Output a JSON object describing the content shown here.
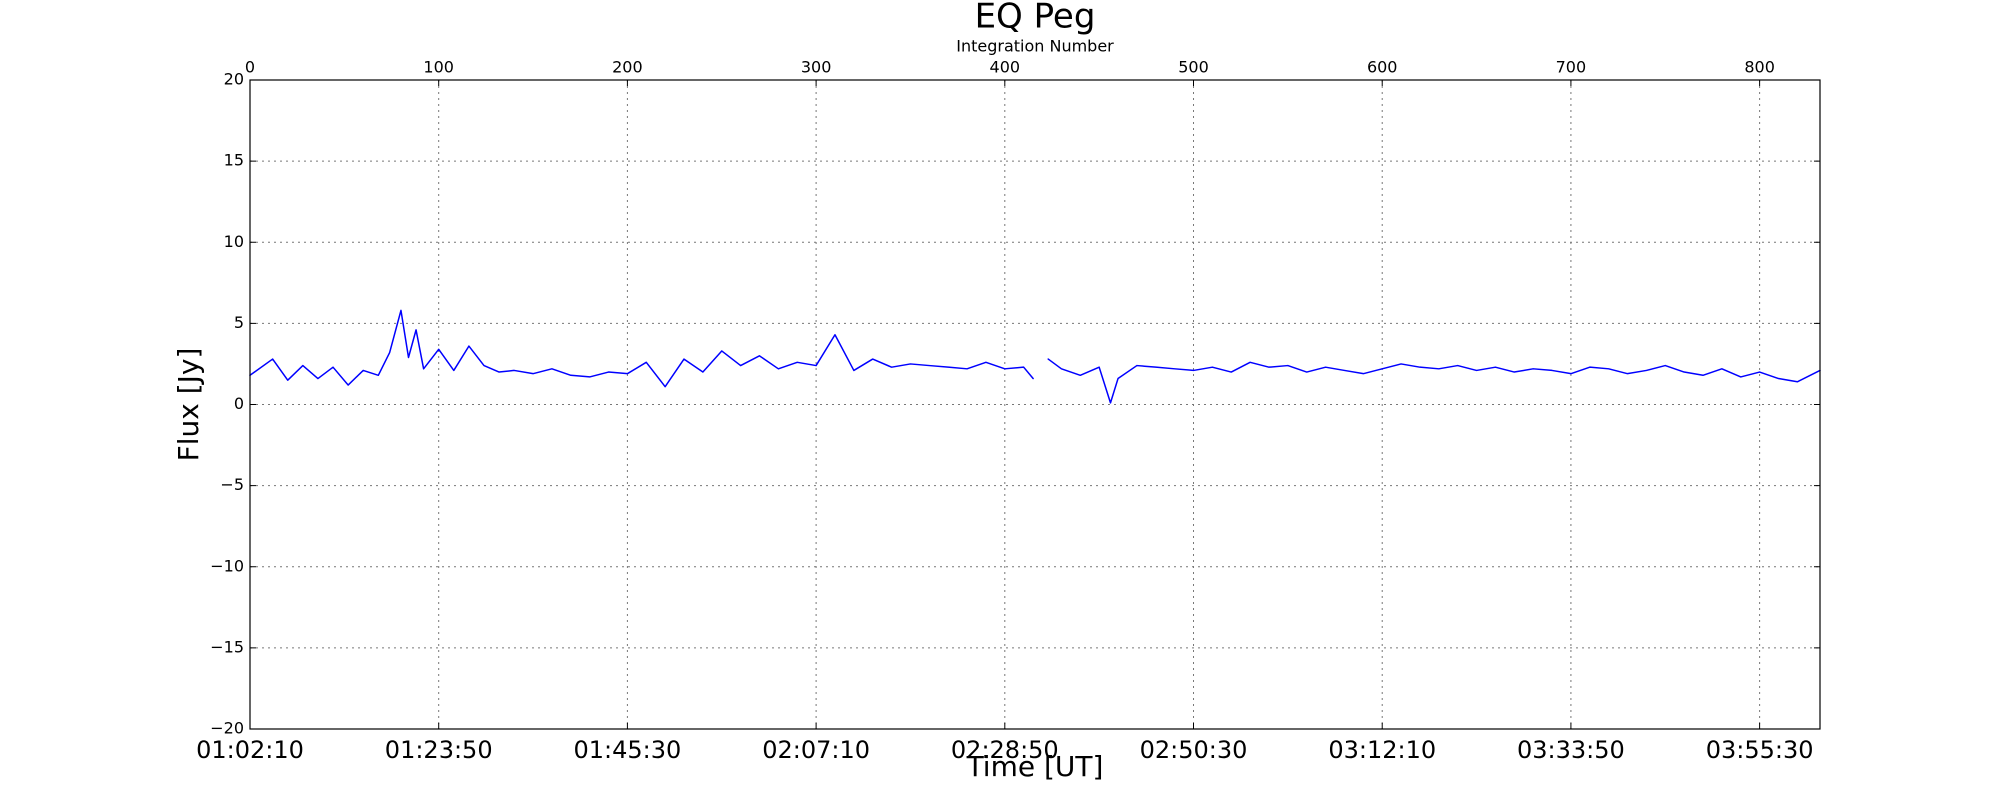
{
  "chart_data": {
    "type": "line",
    "title": "EQ Peg",
    "xlabel": "Time [UT]",
    "ylabel": "Flux [Jy]",
    "x2label": "Integration Number",
    "xlim": [
      0,
      832
    ],
    "ylim": [
      -20,
      20
    ],
    "grid": true,
    "x_ticks": [
      {
        "value": 0,
        "label": "01:02:10"
      },
      {
        "value": 100,
        "label": "01:23:50"
      },
      {
        "value": 200,
        "label": "01:45:30"
      },
      {
        "value": 300,
        "label": "02:07:10"
      },
      {
        "value": 400,
        "label": "02:28:50"
      },
      {
        "value": 500,
        "label": "02:50:30"
      },
      {
        "value": 600,
        "label": "03:12:10"
      },
      {
        "value": 700,
        "label": "03:33:50"
      },
      {
        "value": 800,
        "label": "03:55:30"
      }
    ],
    "x2_ticks": [
      0,
      100,
      200,
      300,
      400,
      500,
      600,
      700,
      800
    ],
    "y_ticks": [
      20,
      15,
      10,
      5,
      0,
      -5,
      -10,
      -15,
      -20
    ],
    "series": [
      {
        "color": "#0000ff",
        "x": [
          0,
          12,
          20,
          28,
          36,
          44,
          52,
          60,
          68,
          74,
          80,
          84,
          88,
          92,
          100,
          108,
          116,
          124,
          132,
          140,
          150,
          160,
          170,
          180,
          190,
          200,
          210,
          220,
          230,
          240,
          250,
          260,
          270,
          280,
          290,
          300,
          310,
          320,
          330,
          340,
          350,
          360,
          370,
          380,
          390,
          400,
          410,
          415,
          null,
          423,
          430,
          440,
          450,
          456,
          460,
          470,
          480,
          490,
          500,
          510,
          520,
          530,
          540,
          550,
          560,
          570,
          580,
          590,
          600,
          610,
          620,
          630,
          640,
          650,
          660,
          670,
          680,
          690,
          700,
          710,
          720,
          730,
          740,
          750,
          760,
          770,
          780,
          790,
          800,
          810,
          820,
          832
        ],
        "y": [
          1.8,
          2.8,
          1.5,
          2.4,
          1.6,
          2.3,
          1.2,
          2.1,
          1.8,
          3.2,
          5.8,
          2.9,
          4.6,
          2.2,
          3.4,
          2.1,
          3.6,
          2.4,
          2.0,
          2.1,
          1.9,
          2.2,
          1.8,
          1.7,
          2.0,
          1.9,
          2.6,
          1.1,
          2.8,
          2.0,
          3.3,
          2.4,
          3.0,
          2.2,
          2.6,
          2.4,
          4.3,
          2.1,
          2.8,
          2.3,
          2.5,
          2.4,
          2.3,
          2.2,
          2.6,
          2.2,
          2.3,
          1.6,
          null,
          2.8,
          2.2,
          1.8,
          2.3,
          0.1,
          1.6,
          2.4,
          2.3,
          2.2,
          2.1,
          2.3,
          2.0,
          2.6,
          2.3,
          2.4,
          2.0,
          2.3,
          2.1,
          1.9,
          2.2,
          2.5,
          2.3,
          2.2,
          2.4,
          2.1,
          2.3,
          2.0,
          2.2,
          2.1,
          1.9,
          2.3,
          2.2,
          1.9,
          2.1,
          2.4,
          2.0,
          1.8,
          2.2,
          1.7,
          2.0,
          1.6,
          1.4,
          2.1
        ]
      }
    ]
  }
}
